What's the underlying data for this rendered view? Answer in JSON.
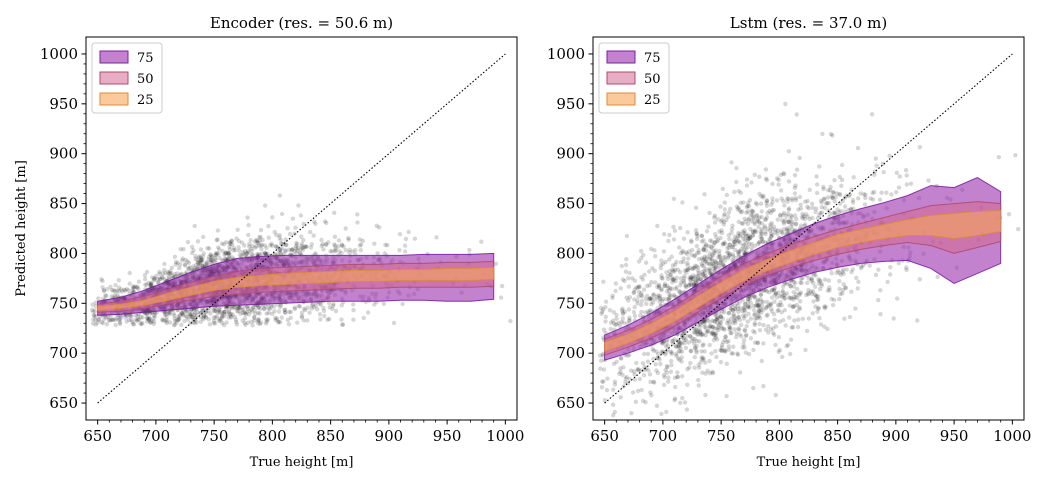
{
  "chart_data": [
    {
      "type": "scatter",
      "title": "Encoder (res. = 50.6 m)",
      "xlabel": "True height [m]",
      "ylabel": "Predicted height [m]",
      "xlim": [
        640,
        1010
      ],
      "ylim": [
        633,
        1017
      ],
      "xticks": [
        650,
        700,
        750,
        800,
        850,
        900,
        950,
        1000
      ],
      "yticks": [
        650,
        700,
        750,
        800,
        850,
        900,
        950,
        1000
      ],
      "legend": {
        "placement": "top-left",
        "entries": [
          "75",
          "50",
          "25"
        ]
      },
      "identity_line": {
        "x": [
          650,
          1000
        ],
        "y": [
          650,
          1000
        ]
      },
      "band_x": [
        650,
        670,
        690,
        710,
        730,
        750,
        770,
        790,
        810,
        830,
        850,
        870,
        890,
        910,
        930,
        950,
        970,
        990
      ],
      "median": [
        745,
        747,
        751,
        757,
        763,
        768,
        771,
        773,
        775,
        776,
        777,
        778,
        779,
        780,
        780,
        780,
        780,
        781
      ],
      "bands": [
        {
          "name": "75",
          "lower": [
            738,
            739,
            741,
            743,
            745,
            747,
            748,
            749,
            750,
            751,
            752,
            752,
            752,
            753,
            753,
            752,
            752,
            754
          ],
          "upper": [
            752,
            756,
            763,
            772,
            781,
            789,
            795,
            797,
            798,
            798,
            798,
            798,
            798,
            798,
            799,
            799,
            799,
            800
          ]
        },
        {
          "name": "50",
          "lower": [
            741,
            742,
            745,
            749,
            753,
            757,
            759,
            761,
            762,
            763,
            764,
            765,
            765,
            766,
            766,
            766,
            766,
            767
          ],
          "upper": [
            749,
            752,
            757,
            764,
            771,
            777,
            782,
            785,
            786,
            787,
            788,
            789,
            789,
            790,
            790,
            791,
            791,
            792
          ]
        },
        {
          "name": "25",
          "lower": [
            743,
            745,
            748,
            753,
            758,
            763,
            766,
            768,
            769,
            770,
            771,
            772,
            772,
            773,
            773,
            773,
            773,
            774
          ],
          "upper": [
            747,
            749,
            753,
            760,
            766,
            772,
            776,
            778,
            780,
            781,
            782,
            783,
            783,
            784,
            784,
            785,
            785,
            786
          ]
        }
      ],
      "scatter_spread": 22
    },
    {
      "type": "scatter",
      "title": "Lstm (res. = 37.0 m)",
      "xlabel": "True height [m]",
      "ylabel": "",
      "xlim": [
        640,
        1010
      ],
      "ylim": [
        633,
        1017
      ],
      "xticks": [
        650,
        700,
        750,
        800,
        850,
        900,
        950,
        1000
      ],
      "yticks": [
        650,
        700,
        750,
        800,
        850,
        900,
        950,
        1000
      ],
      "legend": {
        "placement": "top-left",
        "entries": [
          "75",
          "50",
          "25"
        ]
      },
      "identity_line": {
        "x": [
          650,
          1000
        ],
        "y": [
          650,
          1000
        ]
      },
      "band_x": [
        650,
        670,
        690,
        710,
        730,
        750,
        770,
        790,
        810,
        830,
        850,
        870,
        890,
        910,
        930,
        950,
        970,
        990
      ],
      "median": [
        708,
        716,
        726,
        738,
        752,
        766,
        779,
        789,
        798,
        806,
        813,
        818,
        823,
        827,
        830,
        832,
        834,
        836
      ],
      "bands": [
        {
          "name": "75",
          "lower": [
            693,
            700,
            708,
            718,
            731,
            744,
            756,
            766,
            774,
            781,
            786,
            790,
            792,
            793,
            785,
            770,
            780,
            790
          ],
          "upper": [
            718,
            728,
            740,
            754,
            769,
            784,
            798,
            810,
            820,
            830,
            838,
            845,
            851,
            858,
            868,
            866,
            876,
            862
          ]
        },
        {
          "name": "50",
          "lower": [
            698,
            706,
            715,
            727,
            741,
            755,
            768,
            778,
            786,
            793,
            799,
            804,
            808,
            811,
            808,
            800,
            806,
            812
          ],
          "upper": [
            714,
            723,
            734,
            747,
            762,
            777,
            790,
            800,
            809,
            817,
            824,
            830,
            836,
            842,
            848,
            850,
            852,
            850
          ]
        },
        {
          "name": "25",
          "lower": [
            702,
            710,
            720,
            732,
            746,
            760,
            773,
            783,
            791,
            799,
            806,
            811,
            815,
            818,
            818,
            815,
            818,
            822
          ],
          "upper": [
            711,
            719,
            730,
            742,
            757,
            771,
            784,
            794,
            803,
            811,
            819,
            824,
            829,
            834,
            838,
            840,
            842,
            843
          ]
        }
      ],
      "scatter_spread": 38
    }
  ],
  "colors": {
    "band_75": "#9b2fae",
    "band_75_edge": "#7b1fa2",
    "band_50": "#d46a8f",
    "band_50_edge": "#b04a6f",
    "band_25": "#f7a65a",
    "band_25_edge": "#e08a3a",
    "median_band": "#5a0d5e",
    "points": "#000000",
    "identity_line": "#000000"
  }
}
